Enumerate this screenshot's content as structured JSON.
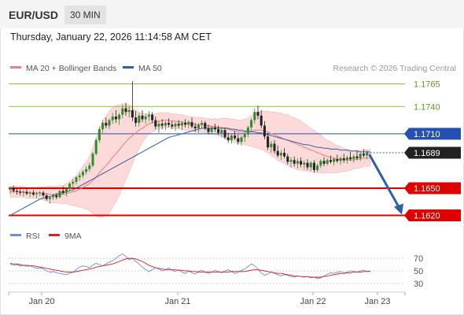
{
  "header": {
    "symbol": "EUR/USD",
    "timeframe": "30 MIN"
  },
  "datetime": "Thursday, January 22, 2026 11:14:58 AM CET",
  "legend": {
    "bollinger": {
      "label": "MA 20 + Bollinger Bands",
      "color": "#f08080"
    },
    "ma50": {
      "label": "MA 50",
      "color": "#2e5fa8"
    },
    "copyright": "Research © 2026 Trading Central",
    "rsi": {
      "label": "RSI",
      "color": "#6b8fd6"
    },
    "rsi_ma": {
      "label": "9MA",
      "color": "#e02020"
    }
  },
  "colors": {
    "up": "#2e8b2e",
    "down": "#222222",
    "resistance": "#8bc34a",
    "current": "#2450b4",
    "support": "#e00000",
    "arrow": "#2e5fa8",
    "band": "#fbd3d3"
  },
  "chart_data": {
    "type": "candlestick",
    "y_range": [
      1.161,
      1.1775
    ],
    "levels": [
      {
        "value": 1.1765,
        "label": "1.1765",
        "kind": "resistance"
      },
      {
        "value": 1.174,
        "label": "1.1740",
        "kind": "resistance"
      },
      {
        "value": 1.171,
        "label": "1.1710",
        "kind": "pivot"
      },
      {
        "value": 1.1689,
        "label": "1.1689",
        "kind": "last"
      },
      {
        "value": 1.165,
        "label": "1.1650",
        "kind": "support"
      },
      {
        "value": 1.162,
        "label": "1.1620",
        "kind": "support"
      }
    ],
    "x_ticks": [
      "Jan 20",
      "Jan 21",
      "Jan 22",
      "Jan 23"
    ],
    "projection": {
      "from": 1.1689,
      "to": 1.162
    },
    "ohlc": [
      [
        1.1648,
        1.1652,
        1.1644,
        1.165
      ],
      [
        1.165,
        1.1653,
        1.1645,
        1.1647
      ],
      [
        1.1647,
        1.165,
        1.1643,
        1.1646
      ],
      [
        1.1646,
        1.1649,
        1.1642,
        1.1645
      ],
      [
        1.1645,
        1.1648,
        1.1641,
        1.1646
      ],
      [
        1.1646,
        1.1649,
        1.1642,
        1.1644
      ],
      [
        1.1644,
        1.1647,
        1.164,
        1.1645
      ],
      [
        1.1645,
        1.1648,
        1.1641,
        1.1643
      ],
      [
        1.1643,
        1.1646,
        1.1639,
        1.1644
      ],
      [
        1.1644,
        1.1647,
        1.1641,
        1.1645
      ],
      [
        1.1645,
        1.1647,
        1.164,
        1.1642
      ],
      [
        1.1642,
        1.1644,
        1.1636,
        1.1638
      ],
      [
        1.1638,
        1.1641,
        1.1633,
        1.164
      ],
      [
        1.164,
        1.1644,
        1.1637,
        1.1642
      ],
      [
        1.1642,
        1.1645,
        1.1638,
        1.164
      ],
      [
        1.164,
        1.1648,
        1.1639,
        1.1647
      ],
      [
        1.1647,
        1.1652,
        1.1643,
        1.1645
      ],
      [
        1.1645,
        1.165,
        1.1641,
        1.1649
      ],
      [
        1.1649,
        1.1656,
        1.1647,
        1.1655
      ],
      [
        1.1655,
        1.166,
        1.1651,
        1.1657
      ],
      [
        1.1657,
        1.1663,
        1.1654,
        1.1662
      ],
      [
        1.1662,
        1.1667,
        1.1658,
        1.1664
      ],
      [
        1.1664,
        1.167,
        1.1661,
        1.1668
      ],
      [
        1.1668,
        1.1674,
        1.1665,
        1.1671
      ],
      [
        1.1671,
        1.1678,
        1.1668,
        1.1675
      ],
      [
        1.1675,
        1.169,
        1.1673,
        1.1688
      ],
      [
        1.1688,
        1.1705,
        1.1686,
        1.1703
      ],
      [
        1.1703,
        1.1718,
        1.17,
        1.1715
      ],
      [
        1.1715,
        1.1725,
        1.1711,
        1.1722
      ],
      [
        1.1722,
        1.1728,
        1.1716,
        1.1719
      ],
      [
        1.1719,
        1.1727,
        1.1715,
        1.1725
      ],
      [
        1.1725,
        1.1733,
        1.1721,
        1.1729
      ],
      [
        1.1729,
        1.1736,
        1.1722,
        1.1726
      ],
      [
        1.1726,
        1.1733,
        1.172,
        1.1731
      ],
      [
        1.1731,
        1.1742,
        1.1727,
        1.1738
      ],
      [
        1.1738,
        1.1744,
        1.173,
        1.1734
      ],
      [
        1.1734,
        1.174,
        1.1728,
        1.1736
      ],
      [
        1.1736,
        1.1768,
        1.1724,
        1.1728
      ],
      [
        1.1728,
        1.1735,
        1.1718,
        1.1722
      ],
      [
        1.1722,
        1.1733,
        1.1718,
        1.173
      ],
      [
        1.173,
        1.1736,
        1.1723,
        1.1726
      ],
      [
        1.1726,
        1.1732,
        1.1721,
        1.1729
      ],
      [
        1.1729,
        1.1735,
        1.1724,
        1.1731
      ],
      [
        1.1731,
        1.1734,
        1.1722,
        1.1725
      ],
      [
        1.1725,
        1.1729,
        1.1715,
        1.1718
      ],
      [
        1.1718,
        1.1724,
        1.1711,
        1.1721
      ],
      [
        1.1721,
        1.1726,
        1.1715,
        1.1719
      ],
      [
        1.1719,
        1.1724,
        1.1714,
        1.1722
      ],
      [
        1.1722,
        1.1727,
        1.1717,
        1.172
      ],
      [
        1.172,
        1.1724,
        1.1715,
        1.1718
      ],
      [
        1.1718,
        1.1723,
        1.1713,
        1.1721
      ],
      [
        1.1721,
        1.1725,
        1.1716,
        1.1719
      ],
      [
        1.1719,
        1.1724,
        1.1714,
        1.1722
      ],
      [
        1.1722,
        1.1726,
        1.1717,
        1.172
      ],
      [
        1.172,
        1.1725,
        1.1716,
        1.1723
      ],
      [
        1.1723,
        1.1728,
        1.1716,
        1.1718
      ],
      [
        1.1718,
        1.1722,
        1.1712,
        1.1716
      ],
      [
        1.1716,
        1.1722,
        1.1711,
        1.172
      ],
      [
        1.172,
        1.1725,
        1.1716,
        1.1722
      ],
      [
        1.1722,
        1.1724,
        1.1714,
        1.1716
      ],
      [
        1.1716,
        1.172,
        1.1709,
        1.1712
      ],
      [
        1.1712,
        1.1719,
        1.1709,
        1.1717
      ],
      [
        1.1717,
        1.1721,
        1.1712,
        1.1715
      ],
      [
        1.1715,
        1.1719,
        1.1709,
        1.1711
      ],
      [
        1.1711,
        1.1716,
        1.1706,
        1.1714
      ],
      [
        1.1714,
        1.1717,
        1.1704,
        1.1706
      ],
      [
        1.1706,
        1.1711,
        1.17,
        1.1703
      ],
      [
        1.1703,
        1.171,
        1.1699,
        1.1708
      ],
      [
        1.1708,
        1.1713,
        1.1703,
        1.1705
      ],
      [
        1.1705,
        1.1709,
        1.1698,
        1.1701
      ],
      [
        1.1701,
        1.1708,
        1.1697,
        1.1706
      ],
      [
        1.1706,
        1.1712,
        1.1701,
        1.171
      ],
      [
        1.171,
        1.1719,
        1.1706,
        1.1717
      ],
      [
        1.1717,
        1.1727,
        1.1713,
        1.1725
      ],
      [
        1.1725,
        1.1738,
        1.1721,
        1.1734
      ],
      [
        1.1734,
        1.1741,
        1.1726,
        1.173
      ],
      [
        1.173,
        1.1736,
        1.1716,
        1.1719
      ],
      [
        1.1719,
        1.1724,
        1.1704,
        1.1707
      ],
      [
        1.1707,
        1.1711,
        1.1692,
        1.1695
      ],
      [
        1.1695,
        1.1702,
        1.1689,
        1.1699
      ],
      [
        1.1699,
        1.1703,
        1.1688,
        1.1691
      ],
      [
        1.1691,
        1.1697,
        1.1684,
        1.1686
      ],
      [
        1.1686,
        1.1692,
        1.1681,
        1.1689
      ],
      [
        1.1689,
        1.1694,
        1.1683,
        1.1685
      ],
      [
        1.1685,
        1.1688,
        1.1676,
        1.1679
      ],
      [
        1.1679,
        1.1684,
        1.1673,
        1.1681
      ],
      [
        1.1681,
        1.1685,
        1.1674,
        1.1677
      ],
      [
        1.1677,
        1.1683,
        1.1672,
        1.168
      ],
      [
        1.168,
        1.1684,
        1.1673,
        1.1676
      ],
      [
        1.1676,
        1.1681,
        1.1671,
        1.1678
      ],
      [
        1.1678,
        1.1682,
        1.167,
        1.1673
      ],
      [
        1.1673,
        1.168,
        1.1669,
        1.1678
      ],
      [
        1.1678,
        1.1681,
        1.1667,
        1.167
      ],
      [
        1.167,
        1.1677,
        1.1668,
        1.1675
      ],
      [
        1.1675,
        1.1682,
        1.1672,
        1.168
      ],
      [
        1.168,
        1.1684,
        1.1674,
        1.1677
      ],
      [
        1.1677,
        1.1683,
        1.1675,
        1.1681
      ],
      [
        1.1681,
        1.1686,
        1.1677,
        1.1679
      ],
      [
        1.1679,
        1.1684,
        1.1675,
        1.1682
      ],
      [
        1.1682,
        1.1687,
        1.1678,
        1.168
      ],
      [
        1.168,
        1.1685,
        1.1676,
        1.1683
      ],
      [
        1.1683,
        1.1688,
        1.1678,
        1.1681
      ],
      [
        1.1681,
        1.1686,
        1.1677,
        1.1684
      ],
      [
        1.1684,
        1.169,
        1.168,
        1.1682
      ],
      [
        1.1682,
        1.1687,
        1.1678,
        1.1685
      ],
      [
        1.1685,
        1.1691,
        1.1681,
        1.1683
      ],
      [
        1.1683,
        1.169,
        1.168,
        1.1688
      ],
      [
        1.1688,
        1.1693,
        1.1684,
        1.1686
      ],
      [
        1.1686,
        1.1692,
        1.1682,
        1.1689
      ]
    ],
    "ma20": [
      1.1646,
      1.1646,
      1.1646,
      1.1646,
      1.1646,
      1.1645,
      1.1645,
      1.1645,
      1.1645,
      1.1645,
      1.1644,
      1.1644,
      1.1643,
      1.1643,
      1.1643,
      1.1643,
      1.1643,
      1.1644,
      1.1645,
      1.1646,
      1.1647,
      1.1649,
      1.1651,
      1.1653,
      1.1655,
      1.1658,
      1.1662,
      1.1667,
      1.1671,
      1.1675,
      1.1679,
      1.1684,
      1.1688,
      1.1692,
      1.1697,
      1.1701,
      1.1705,
      1.1708,
      1.1711,
      1.1714,
      1.1716,
      1.1719,
      1.1721,
      1.1722,
      1.1723,
      1.1724,
      1.1725,
      1.1725,
      1.1725,
      1.1724,
      1.1724,
      1.1723,
      1.1723,
      1.1722,
      1.1721,
      1.1721,
      1.172,
      1.172,
      1.172,
      1.1719,
      1.1719,
      1.1718,
      1.1718,
      1.1717,
      1.1717,
      1.1716,
      1.1715,
      1.1714,
      1.1713,
      1.1712,
      1.1712,
      1.1712,
      1.1712,
      1.1713,
      1.1714,
      1.1714,
      1.1714,
      1.1713,
      1.1712,
      1.171,
      1.1709,
      1.1707,
      1.1706,
      1.1704,
      1.1703,
      1.1701,
      1.17,
      1.1698,
      1.1697,
      1.1695,
      1.1694,
      1.1692,
      1.1691,
      1.1689,
      1.1688,
      1.1686,
      1.1685,
      1.1684,
      1.1683,
      1.1682,
      1.1682,
      1.1681,
      1.1681,
      1.1681,
      1.1681,
      1.1682,
      1.1682,
      1.1683,
      1.1683,
      1.1684
    ],
    "bb_width": [
      0.0006,
      0.0006,
      0.0006,
      0.0006,
      0.0006,
      0.0006,
      0.0006,
      0.0006,
      0.0006,
      0.0007,
      0.0007,
      0.0008,
      0.0009,
      0.0009,
      0.0009,
      0.001,
      0.001,
      0.0011,
      0.0013,
      0.0015,
      0.0017,
      0.002,
      0.0023,
      0.0026,
      0.003,
      0.0036,
      0.0043,
      0.0049,
      0.0053,
      0.0055,
      0.0056,
      0.0055,
      0.0053,
      0.005,
      0.0046,
      0.0042,
      0.0037,
      0.0031,
      0.0025,
      0.002,
      0.0016,
      0.0013,
      0.0011,
      0.001,
      0.0009,
      0.0009,
      0.0008,
      0.0008,
      0.0008,
      0.0008,
      0.0008,
      0.0008,
      0.0008,
      0.0008,
      0.0008,
      0.0008,
      0.0008,
      0.0008,
      0.0008,
      0.0008,
      0.0008,
      0.0008,
      0.0009,
      0.0009,
      0.001,
      0.0011,
      0.0012,
      0.0012,
      0.0013,
      0.0013,
      0.0013,
      0.0014,
      0.0015,
      0.0017,
      0.0019,
      0.002,
      0.0021,
      0.0022,
      0.0023,
      0.0024,
      0.0025,
      0.0026,
      0.0027,
      0.0027,
      0.0028,
      0.0028,
      0.0028,
      0.0028,
      0.0027,
      0.0026,
      0.0025,
      0.0024,
      0.0023,
      0.0022,
      0.0021,
      0.0019,
      0.0018,
      0.0017,
      0.0016,
      0.0015,
      0.0014,
      0.0013,
      0.0012,
      0.0011,
      0.001,
      0.001,
      0.001,
      0.0009,
      0.0009,
      0.0009
    ],
    "ma50": [
      1.162,
      1.1622,
      1.1624,
      1.1626,
      1.1628,
      1.163,
      1.1632,
      1.1634,
      1.1636,
      1.1638,
      1.1639,
      1.164,
      1.1641,
      1.1642,
      1.1643,
      1.1644,
      1.1645,
      1.1646,
      1.1647,
      1.1648,
      1.165,
      1.1652,
      1.1654,
      1.1656,
      1.1658,
      1.166,
      1.1662,
      1.1664,
      1.1666,
      1.1668,
      1.167,
      1.1672,
      1.1674,
      1.1676,
      1.1678,
      1.168,
      1.1682,
      1.1684,
      1.1686,
      1.1688,
      1.169,
      1.1692,
      1.1694,
      1.1696,
      1.1698,
      1.17,
      1.1702,
      1.1704,
      1.1706,
      1.1707,
      1.1708,
      1.1709,
      1.171,
      1.1711,
      1.1712,
      1.1713,
      1.1714,
      1.1715,
      1.1716,
      1.1716,
      1.1716,
      1.1716,
      1.1716,
      1.1716,
      1.1716,
      1.1716,
      1.1716,
      1.1715,
      1.1715,
      1.1714,
      1.1714,
      1.1713,
      1.1713,
      1.1712,
      1.1712,
      1.1711,
      1.1711,
      1.171,
      1.1709,
      1.1708,
      1.1707,
      1.1706,
      1.1705,
      1.1704,
      1.1703,
      1.1702,
      1.1701,
      1.17,
      1.1699,
      1.1698,
      1.1698,
      1.1697,
      1.1696,
      1.1695,
      1.1695,
      1.1694,
      1.1694,
      1.1693,
      1.1693,
      1.1693,
      1.1692,
      1.1692,
      1.1692,
      1.1691,
      1.1691,
      1.1691,
      1.169,
      1.169,
      1.169,
      1.169
    ],
    "rsi": {
      "levels": [
        70,
        50,
        30
      ],
      "range": [
        20,
        80
      ],
      "values": [
        61,
        59,
        60,
        58,
        59,
        57,
        58,
        56,
        54,
        55,
        53,
        50,
        48,
        49,
        47,
        46,
        45,
        44,
        46,
        48,
        52,
        56,
        58,
        57,
        55,
        59,
        62,
        60,
        58,
        61,
        64,
        66,
        70,
        74,
        77,
        73,
        68,
        70,
        65,
        61,
        56,
        52,
        49,
        52,
        55,
        53,
        50,
        52,
        55,
        51,
        49,
        52,
        48,
        46,
        50,
        47,
        45,
        49,
        51,
        48,
        46,
        48,
        51,
        49,
        47,
        50,
        52,
        49,
        46,
        48,
        51,
        53,
        57,
        61,
        58,
        53,
        47,
        43,
        45,
        48,
        46,
        44,
        42,
        44,
        43,
        41,
        40,
        42,
        41,
        40,
        41,
        39,
        40,
        38,
        39,
        42,
        45,
        47,
        46,
        48,
        49,
        47,
        48,
        50,
        49,
        48,
        50,
        51,
        49,
        50
      ],
      "ma": [
        62,
        61,
        61,
        60,
        59,
        59,
        58,
        58,
        57,
        56,
        55,
        54,
        53,
        52,
        51,
        50,
        49,
        48,
        48,
        48,
        49,
        50,
        51,
        52,
        53,
        54,
        56,
        57,
        58,
        59,
        60,
        61,
        63,
        65,
        67,
        69,
        70,
        70,
        69,
        67,
        65,
        62,
        59,
        57,
        55,
        54,
        53,
        52,
        52,
        52,
        52,
        51,
        51,
        50,
        50,
        49,
        49,
        48,
        48,
        48,
        48,
        48,
        48,
        48,
        48,
        48,
        48,
        49,
        49,
        49,
        49,
        49,
        50,
        51,
        52,
        52,
        51,
        50,
        49,
        48,
        47,
        46,
        46,
        45,
        44,
        43,
        42,
        42,
        41,
        41,
        41,
        40,
        40,
        40,
        40,
        41,
        42,
        43,
        44,
        45,
        46,
        46,
        47,
        47,
        48,
        48,
        48,
        49,
        49,
        49
      ]
    }
  }
}
